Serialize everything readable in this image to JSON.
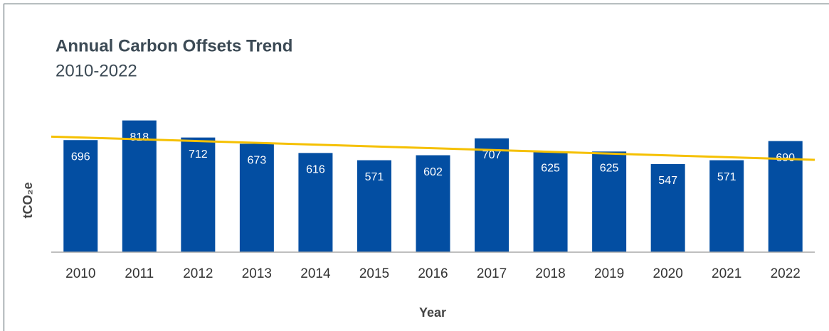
{
  "chart_data": {
    "type": "bar",
    "title": "Annual Carbon Offsets Trend",
    "subtitle": "2010-2022",
    "x_label": "Year",
    "y_label": "tCO₂e",
    "categories": [
      "2010",
      "2011",
      "2012",
      "2013",
      "2014",
      "2015",
      "2016",
      "2017",
      "2018",
      "2019",
      "2020",
      "2021",
      "2022"
    ],
    "values": [
      696,
      818,
      712,
      673,
      616,
      571,
      602,
      707,
      625,
      625,
      547,
      571,
      690
    ],
    "color": "#034ea2",
    "ylim": [
      0,
      900
    ],
    "trendline": {
      "color": "#f5c000",
      "values": [
        712,
        579
      ]
    }
  }
}
